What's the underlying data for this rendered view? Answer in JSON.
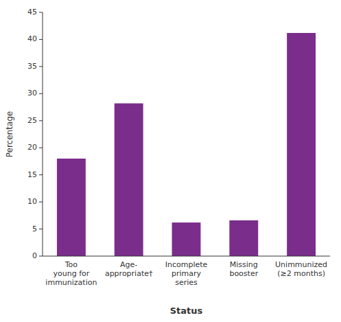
{
  "chart_data": {
    "type": "bar",
    "categories": [
      "Too\nyoung for\nimmunization",
      "Age-\nappropriate†",
      "Incomplete\nprimary\nseries",
      "Missing\nbooster",
      "Unimmunized\n(≥2 months)"
    ],
    "values": [
      18,
      28.2,
      6.2,
      6.6,
      41.2
    ],
    "color": "#7B2D8B",
    "xlabel": "Status",
    "ylabel": "Percentage",
    "ylim": [
      0,
      45
    ],
    "yticks": [
      0,
      5,
      10,
      15,
      20,
      25,
      30,
      35,
      40,
      45
    ],
    "grid": false
  }
}
